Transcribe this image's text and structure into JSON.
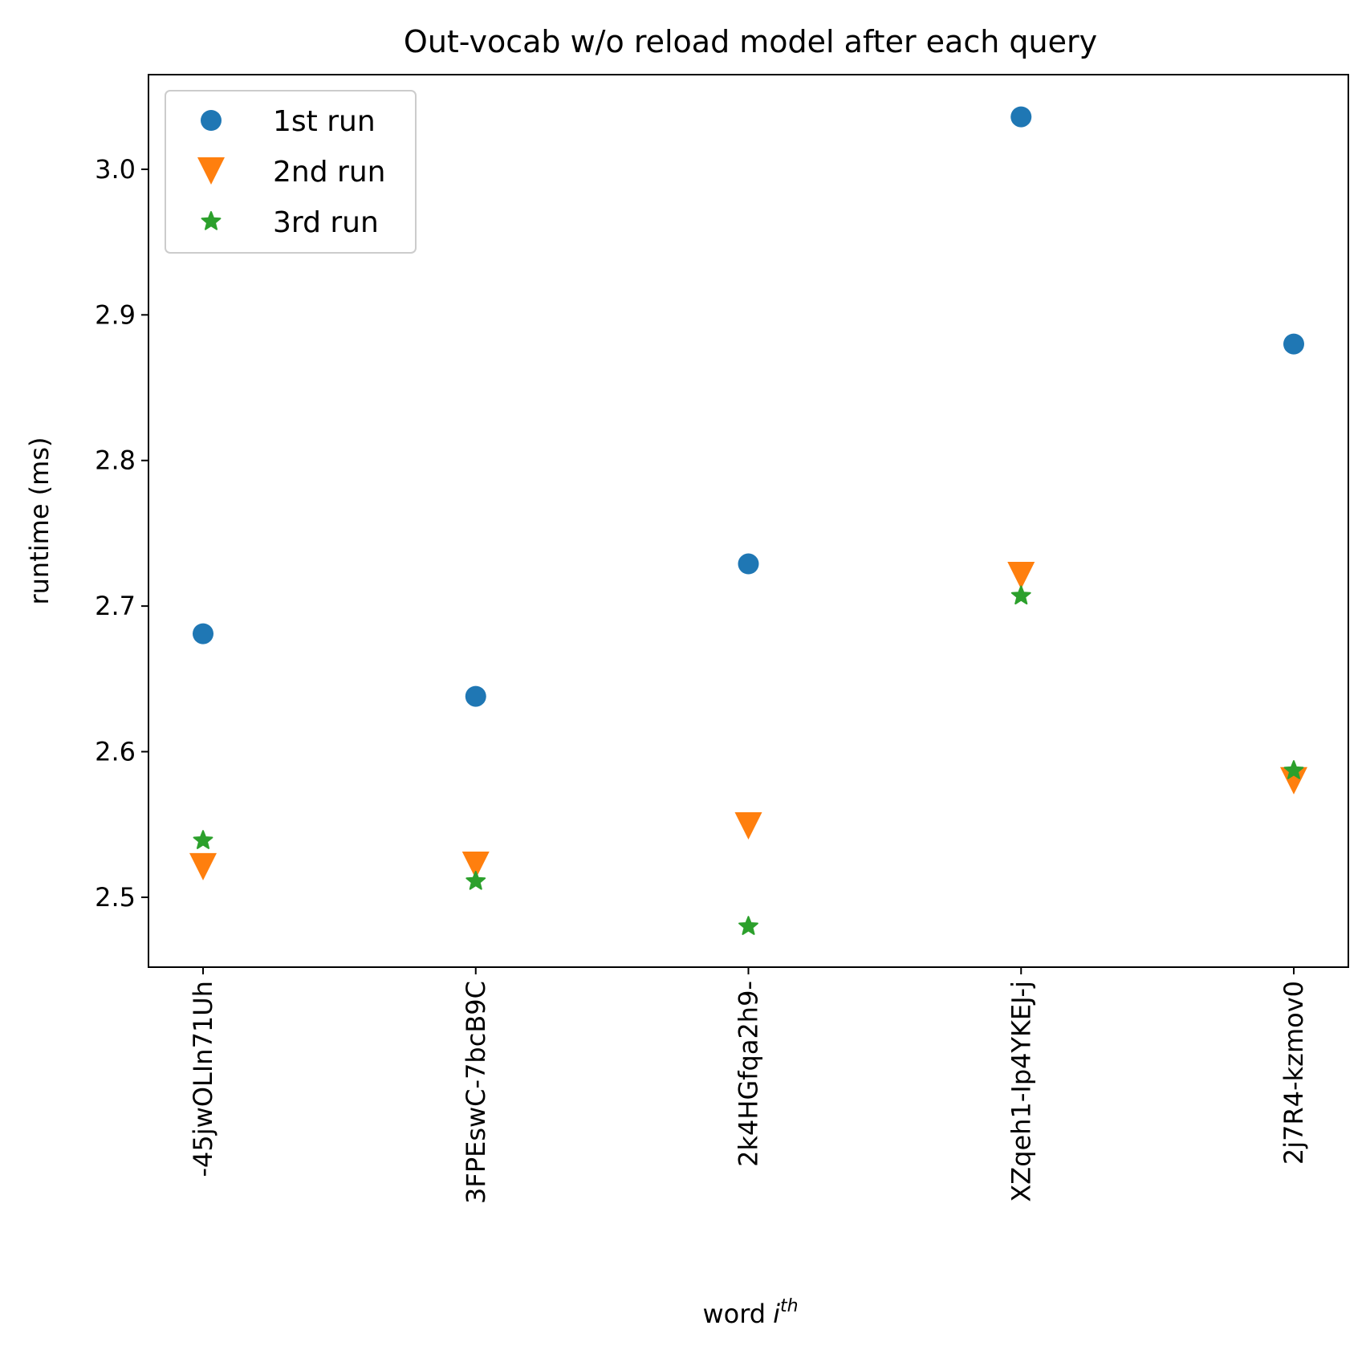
{
  "chart_data": {
    "type": "scatter",
    "title": "Out-vocab w/o reload model after each query",
    "xlabel": "word",
    "xlabel_superscript": "th",
    "xlabel_italic": "i",
    "ylabel": "runtime (ms)",
    "categories": [
      "-45jwOLIn71Uh",
      "3FPEswC-7bcB9C",
      "2k4HGfqa2h9-",
      "XZqeh1-Ip4YKEJ-j",
      "2j7R4-kzmov0"
    ],
    "ylim": [
      2.452,
      3.065
    ],
    "yticks": [
      2.5,
      2.6,
      2.7,
      2.8,
      2.9,
      3.0
    ],
    "ytick_labels": [
      "2.5",
      "2.6",
      "2.7",
      "2.8",
      "2.9",
      "3.0"
    ],
    "grid": false,
    "legend_position": "top-left",
    "series": [
      {
        "name": "1st run",
        "marker": "circle",
        "color": "#1f77b4",
        "values": [
          2.681,
          2.638,
          2.729,
          3.036,
          2.88
        ]
      },
      {
        "name": "2nd run",
        "marker": "triangle-down",
        "color": "#ff7f0e",
        "values": [
          2.521,
          2.522,
          2.549,
          2.721,
          2.58
        ]
      },
      {
        "name": "3rd run",
        "marker": "star",
        "color": "#2ca02c",
        "values": [
          2.539,
          2.511,
          2.48,
          2.707,
          2.587
        ]
      }
    ]
  }
}
